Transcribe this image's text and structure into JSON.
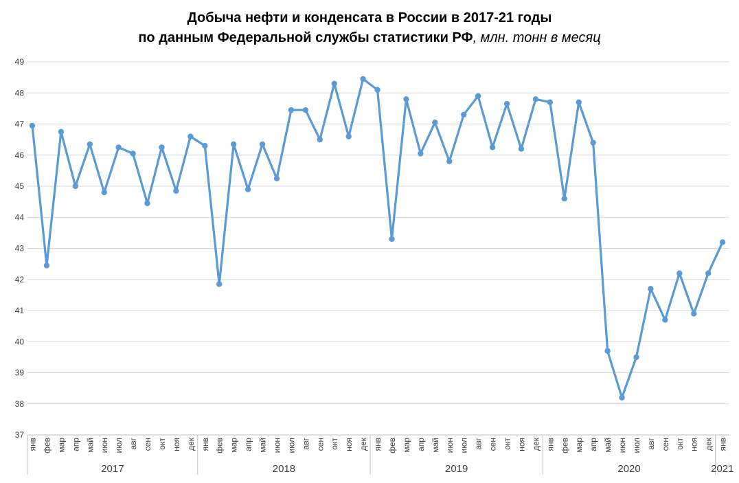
{
  "chart_data": {
    "type": "line",
    "title": "Добыча нефти и конденсата в России в 2017-21 годы",
    "subtitle_bold": "по данным Федеральной службы статистики РФ",
    "subtitle_italic": ", млн. тонн в месяц",
    "ylabel": "",
    "xlabel": "",
    "ylim": [
      37,
      49
    ],
    "ytick_step": 1,
    "grid": true,
    "legend": false,
    "line_color": "#5B9BD5",
    "marker": "circle",
    "categories_months": [
      "янв",
      "фев",
      "мар",
      "апр",
      "май",
      "июн",
      "июл",
      "авг",
      "сен",
      "окт",
      "ноя",
      "дек",
      "янв",
      "фев",
      "мар",
      "апр",
      "май",
      "июн",
      "июл",
      "авг",
      "сен",
      "окт",
      "ноя",
      "дек",
      "янв",
      "фев",
      "мар",
      "апр",
      "май",
      "июн",
      "июл",
      "авг",
      "сен",
      "окт",
      "ноя",
      "дек",
      "янв",
      "фев",
      "мар",
      "апр",
      "май",
      "июн",
      "июл",
      "авг",
      "сен",
      "окт",
      "ноя",
      "дек",
      "янв"
    ],
    "year_groups": [
      {
        "label": "2017",
        "count": 12
      },
      {
        "label": "2018",
        "count": 12
      },
      {
        "label": "2019",
        "count": 12
      },
      {
        "label": "2020",
        "count": 12
      },
      {
        "label": "2021",
        "count": 1
      }
    ],
    "values": [
      46.95,
      42.45,
      46.75,
      45.0,
      46.35,
      44.8,
      46.25,
      46.05,
      44.45,
      46.25,
      44.85,
      46.6,
      46.3,
      41.85,
      46.35,
      44.9,
      46.35,
      45.25,
      47.45,
      47.45,
      46.5,
      48.3,
      46.6,
      48.45,
      48.1,
      43.3,
      47.8,
      46.05,
      47.05,
      45.8,
      47.3,
      47.9,
      46.25,
      47.65,
      46.2,
      47.8,
      47.7,
      44.6,
      47.7,
      46.4,
      39.7,
      38.2,
      39.5,
      41.7,
      40.7,
      42.2,
      40.9,
      42.2,
      43.2
    ]
  },
  "colors": {
    "line": "#5B9BD5",
    "marker": "#5B9BD5",
    "gridline": "#D9D9D9",
    "axis_line": "#BFBFBF",
    "axis_text": "#404040",
    "title_text": "#000000",
    "background": "#FFFFFF"
  }
}
